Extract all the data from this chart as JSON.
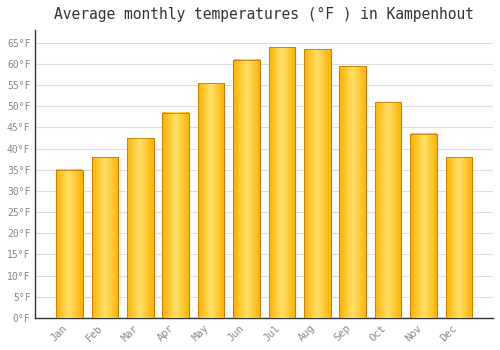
{
  "title": "Average monthly temperatures (°F ) in Kampenhout",
  "months": [
    "Jan",
    "Feb",
    "Mar",
    "Apr",
    "May",
    "Jun",
    "Jul",
    "Aug",
    "Sep",
    "Oct",
    "Nov",
    "Dec"
  ],
  "values": [
    35,
    38,
    42.5,
    48.5,
    55.5,
    61,
    64,
    63.5,
    59.5,
    51,
    43.5,
    38
  ],
  "bar_color_main": "#FFB300",
  "bar_color_light": "#FFDA6A",
  "bar_edge_color": "#C87800",
  "background_color": "#FFFFFF",
  "grid_color": "#DDDDDD",
  "ylim": [
    0,
    68
  ],
  "yticks": [
    0,
    5,
    10,
    15,
    20,
    25,
    30,
    35,
    40,
    45,
    50,
    55,
    60,
    65
  ],
  "tick_label_color": "#888888",
  "title_color": "#333333",
  "title_fontsize": 10.5,
  "font_family": "monospace",
  "bar_width": 0.75
}
